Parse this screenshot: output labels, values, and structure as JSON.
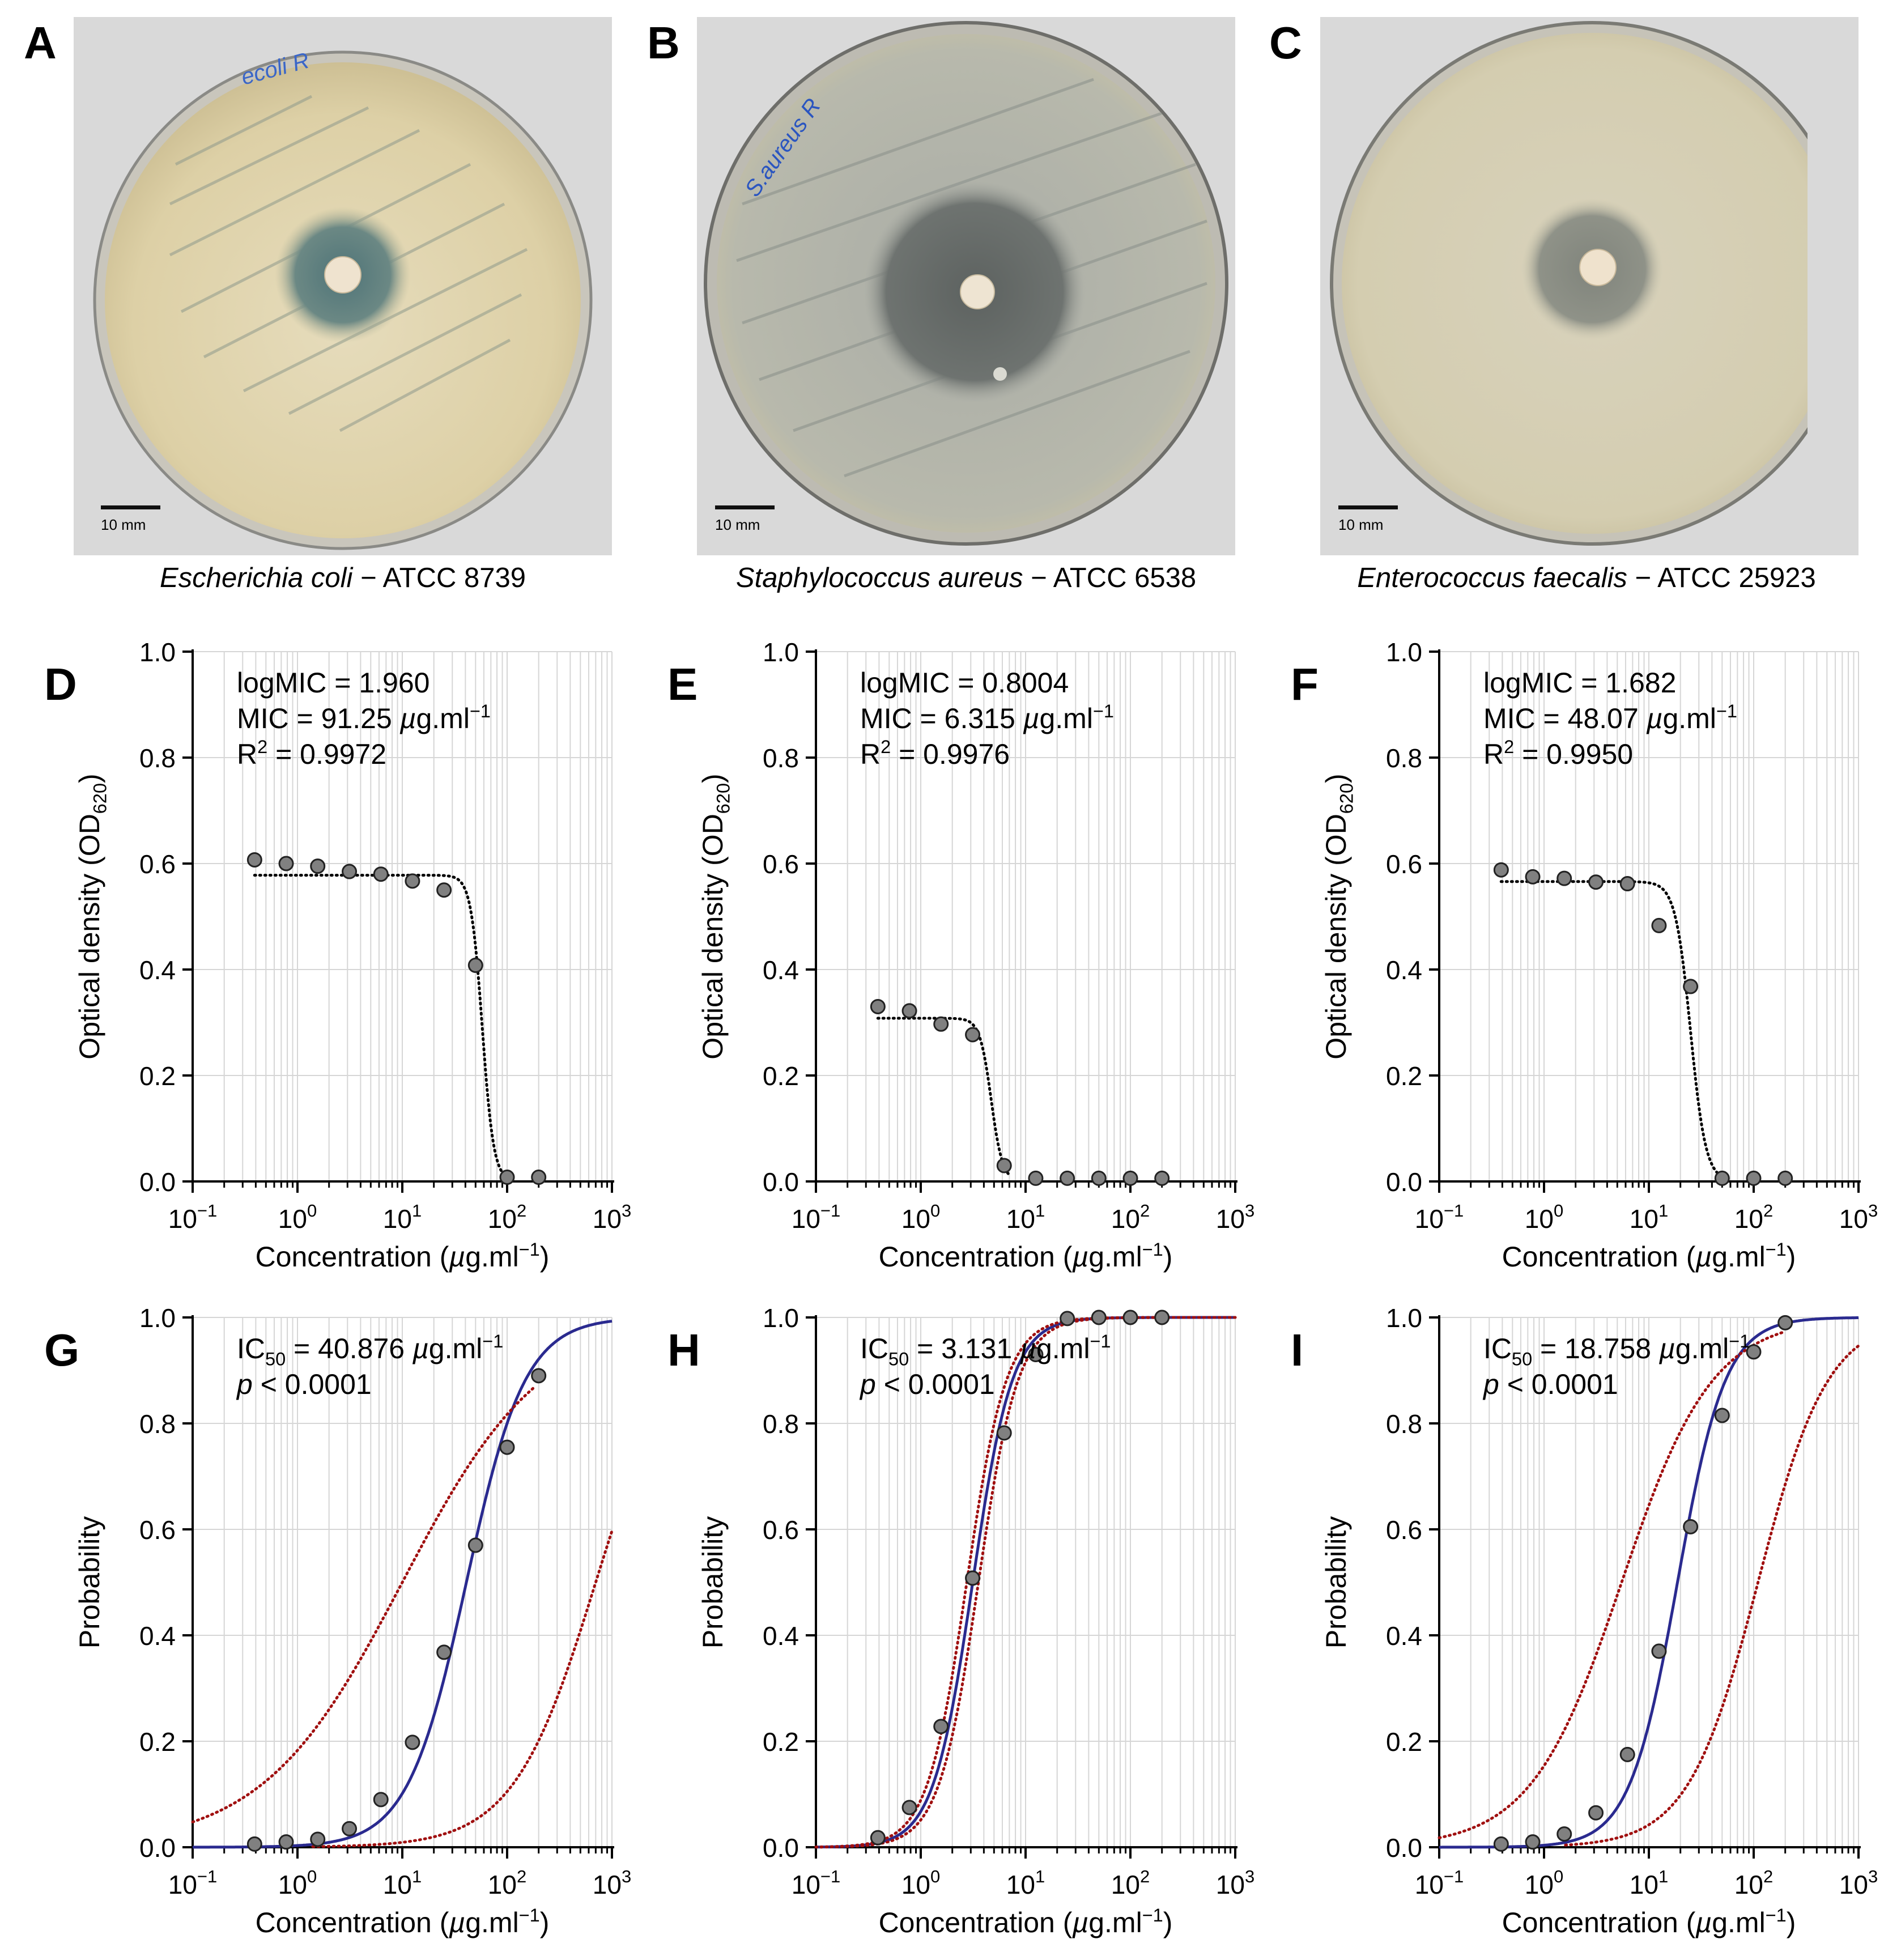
{
  "photos": [
    {
      "label": "A",
      "scale_text": "10 mm",
      "species": "Escherichia  coli",
      "strain": " − ATCC 8739",
      "handwriting": "ecoli R"
    },
    {
      "label": "B",
      "scale_text": "10 mm",
      "species": "Staphylococcus aureus",
      "strain": " − ATCC 6538",
      "handwriting": "S.aureus R"
    },
    {
      "label": "C",
      "scale_text": "10 mm",
      "species": "Enterococcus faecalis",
      "strain": " − ATCC 25923"
    }
  ],
  "chart_data": [
    {
      "panel": "D",
      "type": "scatter",
      "title": "",
      "xlabel": "Concentration (µg.ml⁻¹)",
      "ylabel": "Optical density (OD620)",
      "xscale": "log",
      "xlim": [
        0.1,
        1000
      ],
      "ylim": [
        0,
        1.0
      ],
      "xticks": [
        0.1,
        1,
        10,
        100,
        1000
      ],
      "xtick_labels": [
        "10⁻¹",
        "10⁰",
        "10¹",
        "10²",
        "10³"
      ],
      "yticks": [
        0,
        0.2,
        0.4,
        0.6,
        0.8,
        1.0
      ],
      "ytick_labels": [
        "0.0",
        "0.2",
        "0.4",
        "0.6",
        "0.8",
        "1.0"
      ],
      "annotations": [
        "logMIC = 1.960",
        "MIC = 91.25 µg.ml⁻¹",
        "R² = 0.9972"
      ],
      "points": {
        "x": [
          0.39,
          0.78,
          1.56,
          3.125,
          6.25,
          12.5,
          25,
          50,
          100,
          200
        ],
        "y": [
          0.607,
          0.6,
          0.595,
          0.585,
          0.58,
          0.567,
          0.55,
          0.408,
          0.008,
          0.008
        ]
      },
      "fit": {
        "name": "fit",
        "style": "dotted",
        "color": "#000000",
        "model": "hill",
        "top": 0.578,
        "bottom": 0.0,
        "ec50": 58,
        "hill": 8,
        "x_range": [
          0.39,
          100
        ]
      }
    },
    {
      "panel": "E",
      "type": "scatter",
      "title": "",
      "xlabel": "Concentration (µg.ml⁻¹)",
      "ylabel": "Optical density (OD620)",
      "xscale": "log",
      "xlim": [
        0.1,
        1000
      ],
      "ylim": [
        0,
        1.0
      ],
      "xticks": [
        0.1,
        1,
        10,
        100,
        1000
      ],
      "xtick_labels": [
        "10⁻¹",
        "10⁰",
        "10¹",
        "10²",
        "10³"
      ],
      "yticks": [
        0,
        0.2,
        0.4,
        0.6,
        0.8,
        1.0
      ],
      "ytick_labels": [
        "0.0",
        "0.2",
        "0.4",
        "0.6",
        "0.8",
        "1.0"
      ],
      "annotations": [
        "logMIC = 0.8004",
        "MIC = 6.315 µg.ml⁻¹",
        "R² = 0.9976"
      ],
      "points": {
        "x": [
          0.39,
          0.78,
          1.56,
          3.125,
          6.25,
          12.5,
          25,
          50,
          100,
          200
        ],
        "y": [
          0.33,
          0.322,
          0.297,
          0.277,
          0.03,
          0.006,
          0.006,
          0.006,
          0.006,
          0.006
        ]
      },
      "fit": {
        "name": "fit",
        "style": "dotted",
        "color": "#000000",
        "model": "hill",
        "top": 0.308,
        "bottom": 0.0,
        "ec50": 4.7,
        "hill": 8,
        "x_range": [
          0.39,
          7
        ]
      }
    },
    {
      "panel": "F",
      "type": "scatter",
      "title": "",
      "xlabel": "Concentration (µg.ml⁻¹)",
      "ylabel": "Optical density (OD620)",
      "xscale": "log",
      "xlim": [
        0.1,
        1000
      ],
      "ylim": [
        0,
        1.0
      ],
      "xticks": [
        0.1,
        1,
        10,
        100,
        1000
      ],
      "xtick_labels": [
        "10⁻¹",
        "10⁰",
        "10¹",
        "10²",
        "10³"
      ],
      "yticks": [
        0,
        0.2,
        0.4,
        0.6,
        0.8,
        1.0
      ],
      "ytick_labels": [
        "0.0",
        "0.2",
        "0.4",
        "0.6",
        "0.8",
        "1.0"
      ],
      "annotations": [
        "logMIC = 1.682",
        "MIC = 48.07 µg.ml⁻¹",
        "R² = 0.9950"
      ],
      "points": {
        "x": [
          0.39,
          0.78,
          1.56,
          3.125,
          6.25,
          12.5,
          25,
          50,
          100,
          200
        ],
        "y": [
          0.588,
          0.575,
          0.572,
          0.565,
          0.562,
          0.483,
          0.368,
          0.006,
          0.006,
          0.006
        ]
      },
      "fit": {
        "name": "fit",
        "style": "dotted",
        "color": "#000000",
        "model": "hill",
        "top": 0.566,
        "bottom": 0.0,
        "ec50": 25,
        "hill": 6,
        "x_range": [
          0.39,
          50
        ]
      }
    },
    {
      "panel": "G",
      "type": "line",
      "title": "",
      "xlabel": "Concentration (µg.ml⁻¹)",
      "ylabel": "Probability",
      "xscale": "log",
      "xlim": [
        0.1,
        1000
      ],
      "ylim": [
        0,
        1.0
      ],
      "xticks": [
        0.1,
        1,
        10,
        100,
        1000
      ],
      "xtick_labels": [
        "10⁻¹",
        "10⁰",
        "10¹",
        "10²",
        "10³"
      ],
      "yticks": [
        0,
        0.2,
        0.4,
        0.6,
        0.8,
        1.0
      ],
      "ytick_labels": [
        "0.0",
        "0.2",
        "0.4",
        "0.6",
        "0.8",
        "1.0"
      ],
      "annotations": [
        "IC50 = 40.876 µg.ml⁻¹",
        "p < 0.0001"
      ],
      "points": {
        "x": [
          0.39,
          0.78,
          1.56,
          3.125,
          6.25,
          12.5,
          25,
          50,
          100,
          200
        ],
        "y": [
          0.006,
          0.01,
          0.015,
          0.035,
          0.09,
          0.198,
          0.368,
          0.57,
          0.755,
          0.89
        ]
      },
      "series": [
        {
          "name": "fit",
          "color": "#2a2a8f",
          "style": "solid",
          "model": "logit",
          "ec50": 40.876,
          "hill": 1.55,
          "x_range": [
            0.1,
            1000
          ]
        },
        {
          "name": "upper 95% CI",
          "color": "#a01010",
          "style": "dotted",
          "model": "logit",
          "ec50": 10,
          "hill": 0.65,
          "x_range": [
            0.1,
            180
          ]
        },
        {
          "name": "lower 95% CI",
          "color": "#a01010",
          "style": "dotted",
          "model": "logit",
          "ec50": 700,
          "hill": 1.1,
          "x_range": [
            1.4,
            1000
          ]
        }
      ]
    },
    {
      "panel": "H",
      "type": "line",
      "title": "",
      "xlabel": "Concentration (µg.ml⁻¹)",
      "ylabel": "Probability",
      "xscale": "log",
      "xlim": [
        0.1,
        1000
      ],
      "ylim": [
        0,
        1.0
      ],
      "xticks": [
        0.1,
        1,
        10,
        100,
        1000
      ],
      "xtick_labels": [
        "10⁻¹",
        "10⁰",
        "10¹",
        "10²",
        "10³"
      ],
      "yticks": [
        0,
        0.2,
        0.4,
        0.6,
        0.8,
        1.0
      ],
      "ytick_labels": [
        "0.0",
        "0.2",
        "0.4",
        "0.6",
        "0.8",
        "1.0"
      ],
      "annotations": [
        "IC50 = 3.131 µg.ml⁻¹",
        "p < 0.0001"
      ],
      "points": {
        "x": [
          0.39,
          0.78,
          1.56,
          3.125,
          6.25,
          12.5,
          25,
          50,
          100,
          200
        ],
        "y": [
          0.018,
          0.075,
          0.228,
          0.508,
          0.782,
          0.93,
          0.998,
          1.0,
          1.0,
          1.0
        ]
      },
      "series": [
        {
          "name": "fit",
          "color": "#2a2a8f",
          "style": "solid",
          "model": "logit",
          "ec50": 3.131,
          "hill": 2.3,
          "x_range": [
            0.1,
            1000
          ]
        },
        {
          "name": "upper 95% CI",
          "color": "#a01010",
          "style": "dotted",
          "model": "logit",
          "ec50": 2.75,
          "hill": 2.3,
          "x_range": [
            0.1,
            1000
          ]
        },
        {
          "name": "lower 95% CI",
          "color": "#a01010",
          "style": "dotted",
          "model": "logit",
          "ec50": 3.55,
          "hill": 2.3,
          "x_range": [
            0.1,
            1000
          ]
        }
      ]
    },
    {
      "panel": "I",
      "type": "line",
      "title": "",
      "xlabel": "Concentration (µg.ml⁻¹)",
      "ylabel": "Probability",
      "xscale": "log",
      "xlim": [
        0.1,
        1000
      ],
      "ylim": [
        0,
        1.0
      ],
      "xticks": [
        0.1,
        1,
        10,
        100,
        1000
      ],
      "xtick_labels": [
        "10⁻¹",
        "10⁰",
        "10¹",
        "10²",
        "10³"
      ],
      "yticks": [
        0,
        0.2,
        0.4,
        0.6,
        0.8,
        1.0
      ],
      "ytick_labels": [
        "0.0",
        "0.2",
        "0.4",
        "0.6",
        "0.8",
        "1.0"
      ],
      "annotations": [
        "IC50 = 18.758 µg.ml⁻¹",
        "p < 0.0001"
      ],
      "points": {
        "x": [
          0.39,
          0.78,
          1.56,
          3.125,
          6.25,
          12.5,
          25,
          50,
          100,
          200
        ],
        "y": [
          0.006,
          0.01,
          0.025,
          0.065,
          0.175,
          0.37,
          0.605,
          0.815,
          0.935,
          0.99
        ]
      },
      "series": [
        {
          "name": "fit",
          "color": "#2a2a8f",
          "style": "solid",
          "model": "logit",
          "ec50": 18.758,
          "hill": 1.9,
          "x_range": [
            0.1,
            1000
          ]
        },
        {
          "name": "upper 95% CI",
          "color": "#a01010",
          "style": "dotted",
          "model": "logit",
          "ec50": 5.5,
          "hill": 1.0,
          "x_range": [
            0.1,
            200
          ]
        },
        {
          "name": "lower 95% CI",
          "color": "#a01010",
          "style": "dotted",
          "model": "logit",
          "ec50": 110,
          "hill": 1.3,
          "x_range": [
            1.6,
            1000
          ]
        }
      ]
    }
  ],
  "colors": {
    "marker_fill": "#808080",
    "marker_edge": "#222222",
    "grid": "#d6d6d6",
    "fit_blue": "#2a2a8f",
    "ci_red": "#a01010"
  }
}
